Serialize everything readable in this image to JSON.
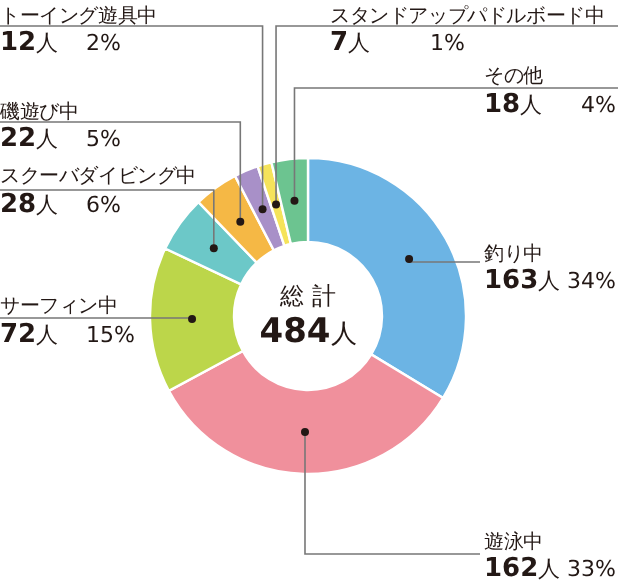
{
  "chart_data": {
    "type": "donut",
    "title": "総 計",
    "subtitle": "**484**人",
    "categories": [
      "釣り中",
      "遊泳中",
      "サーフィン中",
      "スクーバダイビング中",
      "磯遊び中",
      "トーイング遊具中",
      "スタンドアップパドルボード中",
      "その他"
    ],
    "values": [
      163,
      162,
      72,
      28,
      22,
      12,
      7,
      18
    ],
    "value_labels": [
      "**163**人　34%",
      "**162**人　33%",
      "**72**人　15%",
      "**28**人　6%",
      "**22**人　5%",
      "**12**人　2%",
      "**7**人　1%",
      "**18**人　4%"
    ],
    "colors": [
      "#6cb4e4",
      "#f0909c",
      "#bcd64a",
      "#6cc8c8",
      "#f5b845",
      "#a890c8",
      "#f5e35a",
      "#6cc490"
    ]
  }
}
